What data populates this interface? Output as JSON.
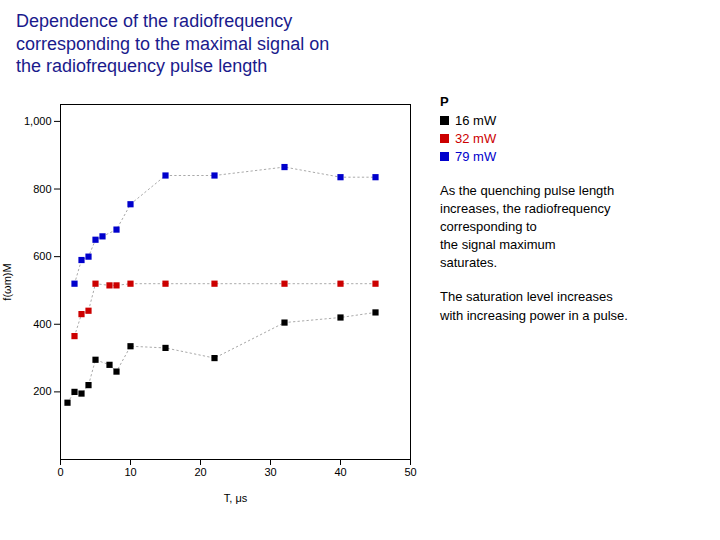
{
  "chart_data": {
    "type": "line",
    "title": "Dependence of the radiofrequency\ncorresponding to the maximal signal on\nthe radiofrequency pulse length",
    "xlabel": "T, μs",
    "ylabel": "f(ωm)M",
    "xlim": [
      0,
      50
    ],
    "ylim": [
      0,
      1050
    ],
    "xticks": [
      0,
      10,
      20,
      30,
      40,
      50
    ],
    "yticks": [
      200,
      400,
      600,
      800,
      1000
    ],
    "grid": false,
    "legend": "right",
    "legend_title": "P",
    "marker": "square",
    "line_style": "dotted",
    "annotations": [
      "As the quenching pulse length\nincreases, the radiofrequency\ncorresponding to\nthe signal maximum\nsaturates.",
      "The saturation level increases\nwith increasing power in a pulse."
    ],
    "series": [
      {
        "name": "16 mW",
        "color": "#000000",
        "x": [
          1,
          2,
          3,
          4,
          5,
          7,
          8,
          10,
          15,
          22,
          32,
          40,
          45
        ],
        "values": [
          168,
          200,
          195,
          220,
          295,
          280,
          260,
          335,
          330,
          300,
          405,
          420,
          435
        ]
      },
      {
        "name": "32 mW",
        "color": "#cc0000",
        "x": [
          2,
          3,
          4,
          5,
          7,
          8,
          10,
          15,
          22,
          32,
          40,
          45
        ],
        "values": [
          365,
          430,
          440,
          520,
          515,
          515,
          520,
          520,
          520,
          520,
          520,
          520
        ]
      },
      {
        "name": "79 mW",
        "color": "#0000cc",
        "x": [
          2,
          3,
          4,
          5,
          6,
          8,
          10,
          15,
          22,
          32,
          40,
          45
        ],
        "values": [
          520,
          590,
          600,
          650,
          660,
          680,
          755,
          840,
          840,
          865,
          835,
          835
        ]
      }
    ]
  }
}
